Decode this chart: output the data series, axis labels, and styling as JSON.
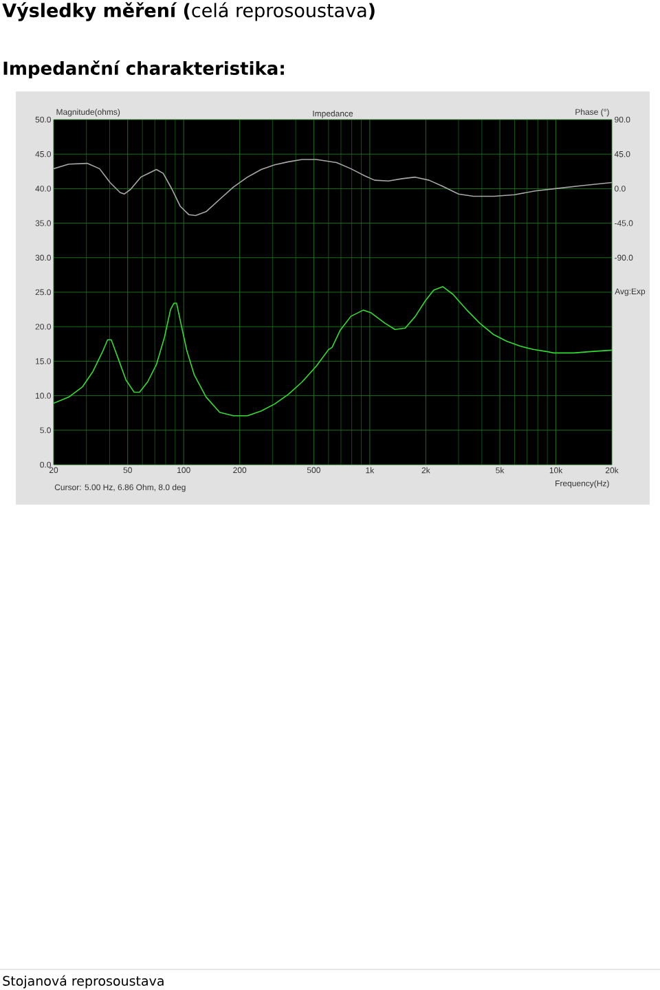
{
  "chart_data": {
    "type": "line",
    "title": "**Výsledky měření (**celá reprosoustava**)**",
    "subtitle": "Impedanční charakteristika:",
    "xlabel": "Frequency(Hz)",
    "ylabel": "Magnitude(ohms)",
    "y2label": "Phase (°)",
    "annotations": [
      "Impedance",
      "Avg:Exp",
      "Cursor: 5.00 Hz, 6.86 Ohm, 8.0 deg",
      "Stojanová reprosoustava"
    ],
    "log": "x",
    "grid": true,
    "xlim": [
      20,
      20000
    ],
    "xticks": [
      20,
      {
        "value": 30,
        "label": null
      },
      {
        "value": 40,
        "label": null
      },
      50,
      {
        "value": 60,
        "label": null
      },
      {
        "value": 70,
        "label": null
      },
      {
        "value": 80,
        "label": null
      },
      {
        "value": 90,
        "label": null
      },
      100,
      200,
      {
        "value": 300,
        "label": null
      },
      {
        "value": 400,
        "label": null
      },
      500,
      {
        "value": 600,
        "label": null
      },
      {
        "value": 700,
        "label": null
      },
      {
        "value": 800,
        "label": null
      },
      {
        "value": 900,
        "label": null
      },
      {
        "value": 1000,
        "label": "1k"
      },
      {
        "value": 2000,
        "label": "2k"
      },
      {
        "value": 3000,
        "label": null
      },
      {
        "value": 4000,
        "label": null
      },
      {
        "value": 5000,
        "label": "5k"
      },
      {
        "value": 6000,
        "label": null
      },
      {
        "value": 7000,
        "label": null
      },
      {
        "value": 8000,
        "label": null
      },
      {
        "value": 9000,
        "label": null
      },
      {
        "value": 10000,
        "label": "10k"
      },
      {
        "value": 20000,
        "label": "20k"
      }
    ],
    "ylim": [
      0,
      50
    ],
    "yticks": [
      {
        "value": 0,
        "label": "0.0"
      },
      {
        "value": 5,
        "label": "5.0"
      },
      {
        "value": 10,
        "label": "10.0"
      },
      {
        "value": 15,
        "label": "15.0"
      },
      {
        "value": 20,
        "label": "20.0"
      },
      {
        "value": 25,
        "label": "25.0"
      },
      {
        "value": 30,
        "label": "30.0"
      },
      {
        "value": 35,
        "label": "35.0"
      },
      {
        "value": 40,
        "label": "40.0"
      },
      {
        "value": 45,
        "label": "45.0"
      },
      {
        "value": 50,
        "label": "50.0"
      }
    ],
    "y2lim": [
      -360,
      90
    ],
    "y2ticks": [
      {
        "value": 90,
        "label": "90.0"
      },
      {
        "value": 45,
        "label": "45.0"
      },
      {
        "value": 0,
        "label": "0.0"
      },
      {
        "value": -45,
        "label": "-45.0"
      },
      {
        "value": -90,
        "label": "-90.0"
      }
    ],
    "series": [
      {
        "color": "#33dd33",
        "x": [
          20,
          24.1,
          28.6,
          32.5,
          36.8,
          39,
          40.8,
          44.3,
          48.9,
          54.2,
          57.9,
          64,
          71.3,
          78.9,
          85,
          88.6,
          91.6,
          96.5,
          104,
          114,
          132,
          156,
          185,
          220,
          261,
          308,
          365,
          433,
          516,
          601,
          627,
          694,
          791,
          921,
          1017,
          1206,
          1366,
          1550,
          1757,
          1994,
          2206,
          2465,
          2795,
          3300,
          3900,
          4600,
          5430,
          6400,
          7570,
          8930,
          9720,
          12500,
          15420,
          20000
        ],
        "values": [
          8.9,
          9.8,
          11.3,
          13.5,
          16.5,
          18.1,
          18.1,
          15.5,
          12.3,
          10.5,
          10.5,
          12.0,
          14.5,
          18.5,
          22.5,
          23.4,
          23.4,
          20.5,
          16.5,
          13.0,
          9.8,
          7.6,
          7.1,
          7.1,
          7.8,
          8.8,
          10.2,
          12.0,
          14.3,
          16.7,
          17.0,
          19.5,
          21.5,
          22.4,
          22.0,
          20.5,
          19.6,
          19.8,
          21.5,
          23.8,
          25.3,
          25.8,
          24.7,
          22.5,
          20.5,
          18.9,
          17.9,
          17.2,
          16.7,
          16.4,
          16.2,
          16.2,
          16.4,
          16.6
        ]
      },
      {
        "color": "#a8a8a8",
        "axis": "y2",
        "x": [
          20,
          24.1,
          30.3,
          35.3,
          40.2,
          45.5,
          48,
          51.8,
          58.8,
          71.3,
          77.6,
          86.6,
          95.8,
          106.7,
          115.9,
          132,
          156,
          185,
          220,
          261,
          308,
          365,
          433,
          516,
          585,
          664,
          791,
          935,
          1062,
          1260,
          1493,
          1757,
          2082,
          2465,
          3000,
          3610,
          4650,
          5990,
          7730,
          9930,
          13800,
          20000
        ],
        "values": [
          26,
          32,
          33,
          26,
          8,
          -5,
          -7,
          -1,
          15,
          25,
          20,
          -1,
          -23,
          -34,
          -35,
          -30,
          -14,
          2,
          15,
          25,
          31,
          35,
          38,
          38,
          36,
          34,
          26,
          17,
          11,
          10,
          13,
          15,
          11,
          3,
          -7,
          -10,
          -10,
          -8,
          -3,
          0,
          4,
          8
        ]
      }
    ]
  }
}
